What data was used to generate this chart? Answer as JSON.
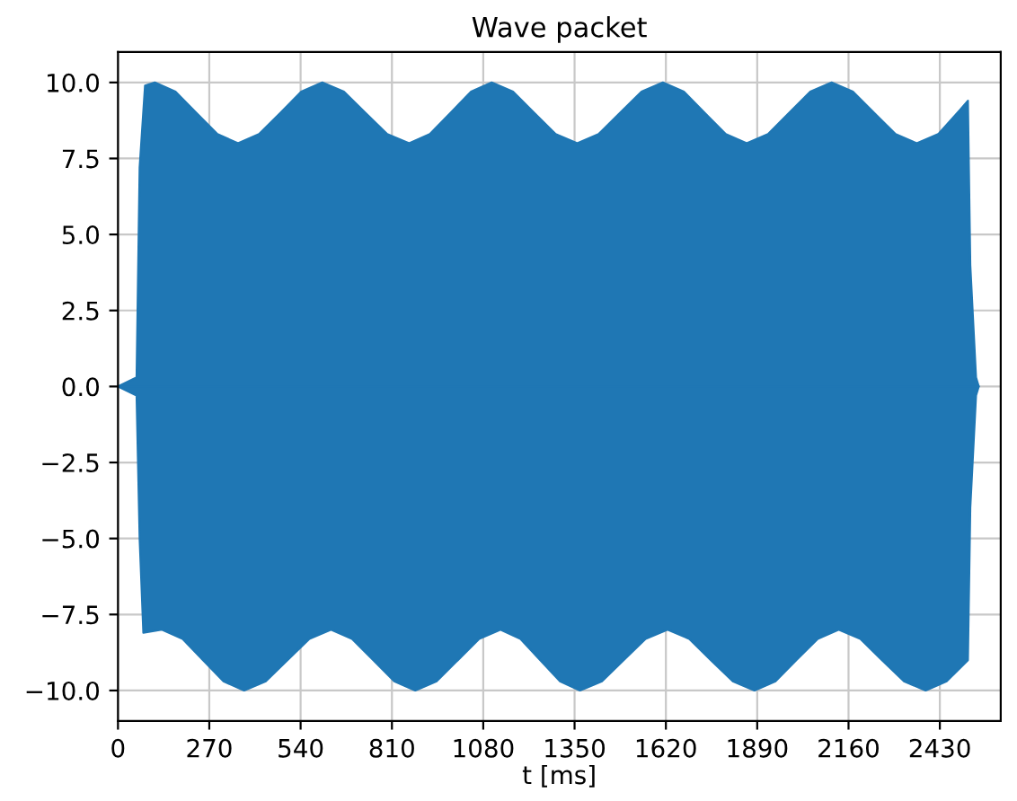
{
  "chart_data": {
    "type": "area",
    "title": "Wave packet",
    "xlabel": "t [ms]",
    "series": [
      {
        "color": "#1f77b4",
        "x": [
          0,
          55,
          64,
          80,
          109,
          170,
          232,
          294,
          355,
          417,
          480,
          542,
          604,
          668,
          732,
          796,
          861,
          922,
          983,
          1044,
          1105,
          1168,
          1231,
          1294,
          1358,
          1421,
          1484,
          1548,
          1611,
          1673,
          1735,
          1797,
          1859,
          1922,
          1984,
          2047,
          2110,
          2173,
          2236,
          2299,
          2362,
          2425,
          2490,
          2513,
          2520,
          2537,
          2545
        ],
        "values": [
          0,
          0.3,
          7.2,
          9.9,
          10.0,
          9.7,
          9.0,
          8.3,
          8.0,
          8.3,
          9.0,
          9.7,
          10.0,
          9.7,
          9.0,
          8.3,
          8.0,
          8.3,
          9.0,
          9.7,
          10.0,
          9.7,
          9.0,
          8.3,
          8.0,
          8.3,
          9.0,
          9.7,
          10.0,
          9.7,
          9.0,
          8.3,
          8.0,
          8.3,
          9.0,
          9.7,
          10.0,
          9.7,
          9.0,
          8.3,
          8.0,
          8.3,
          9.1,
          9.4,
          4.0,
          0.3,
          0
        ]
      },
      {
        "color": "#1f77b4",
        "x": [
          0,
          55,
          64,
          75,
          130,
          191,
          251,
          312,
          373,
          437,
          501,
          566,
          630,
          692,
          755,
          817,
          879,
          942,
          1005,
          1068,
          1131,
          1190,
          1248,
          1307,
          1366,
          1431,
          1495,
          1560,
          1625,
          1689,
          1753,
          1818,
          1882,
          1944,
          2006,
          2069,
          2131,
          2195,
          2259,
          2324,
          2388,
          2450,
          2513,
          2520,
          2537,
          2545
        ],
        "values": [
          0,
          -0.3,
          -5.0,
          -8.1,
          -8.0,
          -8.3,
          -9.0,
          -9.7,
          -10.0,
          -9.7,
          -9.0,
          -8.3,
          -8.0,
          -8.3,
          -9.0,
          -9.7,
          -10.0,
          -9.7,
          -9.0,
          -8.3,
          -8.0,
          -8.3,
          -9.0,
          -9.7,
          -10.0,
          -9.7,
          -9.0,
          -8.3,
          -8.0,
          -8.3,
          -9.0,
          -9.7,
          -10.0,
          -9.7,
          -9.0,
          -8.3,
          -8.0,
          -8.3,
          -9.0,
          -9.7,
          -10.0,
          -9.7,
          -9.0,
          -4.0,
          -0.3,
          0
        ]
      }
    ],
    "xlim": [
      0,
      2610
    ],
    "xticks": [
      0,
      270,
      540,
      810,
      1080,
      1350,
      1620,
      1890,
      2160,
      2430
    ],
    "ylim": [
      -11,
      11
    ],
    "yticks": [
      {
        "value": -10,
        "label": "−10.0"
      },
      {
        "value": -7.5,
        "label": "−7.5"
      },
      {
        "value": -5,
        "label": "−5.0"
      },
      {
        "value": -2.5,
        "label": "−2.5"
      },
      {
        "value": 0,
        "label": "0.0"
      },
      {
        "value": 2.5,
        "label": "2.5"
      },
      {
        "value": 5,
        "label": "5.0"
      },
      {
        "value": 7.5,
        "label": "7.5"
      },
      {
        "value": 10,
        "label": "10.0"
      }
    ],
    "grid": true
  }
}
